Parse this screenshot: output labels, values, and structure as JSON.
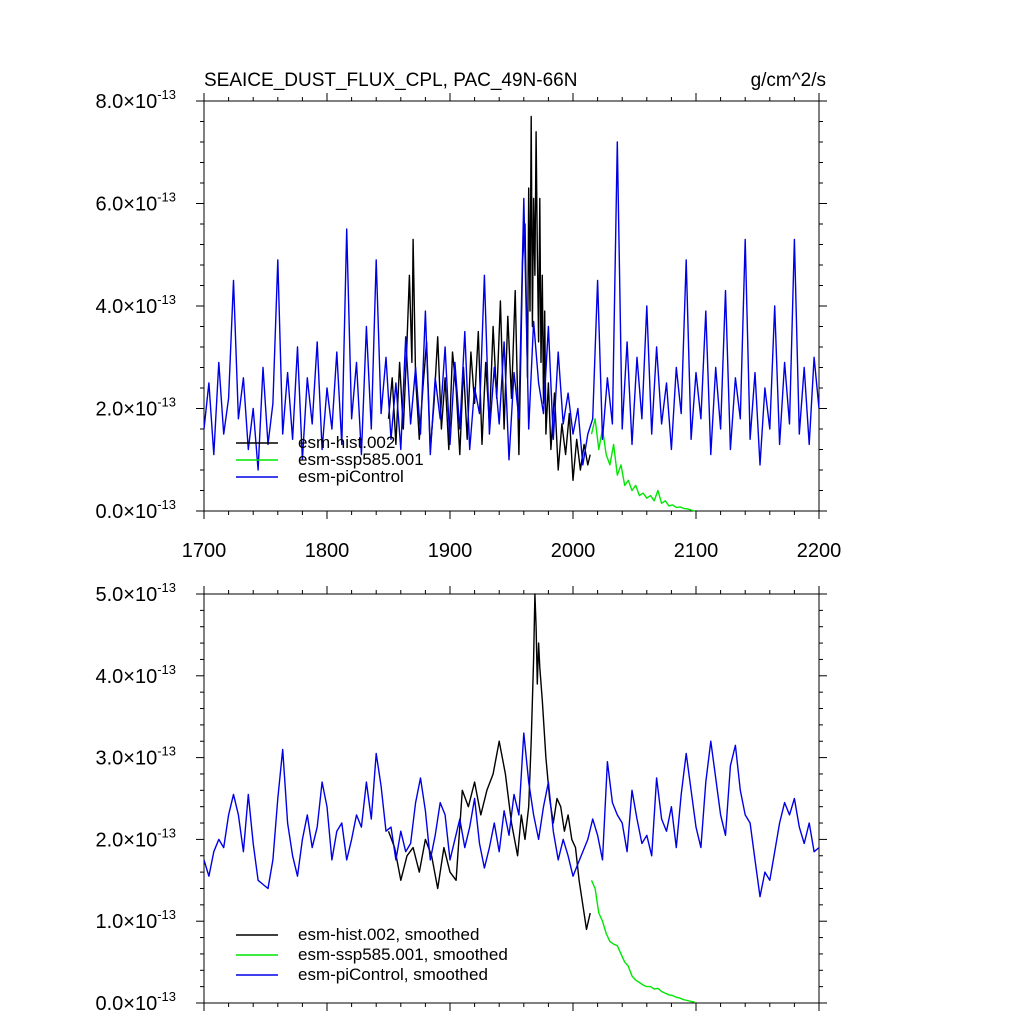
{
  "title": {
    "left": "SEAICE_DUST_FLUX_CPL, PAC_49N-66N",
    "units": "g/cm^2/s"
  },
  "colors": {
    "hist": "#000000",
    "ssp": "#00e600",
    "pi": "#0000e6"
  },
  "chart_data": [
    {
      "type": "line",
      "name": "annual",
      "xlim": [
        1700,
        2200
      ],
      "ylim": [
        0,
        8e-13
      ],
      "x_ticks": [
        1700,
        1800,
        1900,
        2000,
        2100,
        2200
      ],
      "x_tick_labels": [
        "1700",
        "1800",
        "1900",
        "2000",
        "2100",
        "2200"
      ],
      "y_ticks": [
        0,
        2e-13,
        4e-13,
        6e-13,
        8e-13
      ],
      "y_tick_labels": [
        {
          "mant": "0.0",
          "exp": "-13"
        },
        {
          "mant": "2.0",
          "exp": "-13"
        },
        {
          "mant": "4.0",
          "exp": "-13"
        },
        {
          "mant": "6.0",
          "exp": "-13"
        },
        {
          "mant": "8.0",
          "exp": "-13"
        }
      ],
      "legend": [
        "esm-hist.002",
        "esm-ssp585.001",
        "esm-piControl"
      ],
      "legend_position": "bottom-left",
      "series": [
        {
          "name": "esm-hist.002",
          "color_key": "hist",
          "x": [
            1850,
            1853,
            1856,
            1859,
            1862,
            1865,
            1867,
            1869,
            1870,
            1872,
            1875,
            1878,
            1881,
            1884,
            1887,
            1890,
            1893,
            1896,
            1899,
            1902,
            1905,
            1908,
            1911,
            1914,
            1917,
            1920,
            1923,
            1926,
            1929,
            1932,
            1935,
            1938,
            1941,
            1944,
            1947,
            1950,
            1953,
            1956,
            1959,
            1961,
            1963,
            1964,
            1965,
            1966,
            1967,
            1968,
            1969,
            1970,
            1971,
            1972,
            1973,
            1974,
            1975,
            1976,
            1977,
            1978,
            1980,
            1982,
            1985,
            1988,
            1991,
            1994,
            1997,
            2000,
            2003,
            2006,
            2009,
            2012,
            2014
          ],
          "values": [
            1.8e-13,
            2.6e-13,
            1.3e-13,
            2.9e-13,
            1.6e-13,
            3.3e-13,
            4.6e-13,
            2.9e-13,
            5.3e-13,
            2.6e-13,
            1.4e-13,
            2.4e-13,
            3.3e-13,
            1.2e-13,
            2.1e-13,
            3.4e-13,
            1.6e-13,
            2.6e-13,
            1.2e-13,
            3.1e-13,
            2.4e-13,
            1.1e-13,
            2.8e-13,
            1.4e-13,
            3.1e-13,
            2.1e-13,
            3.5e-13,
            1.3e-13,
            2.9e-13,
            1.7e-13,
            3.6e-13,
            2.2e-13,
            4.1e-13,
            1.6e-13,
            3.8e-13,
            2.2e-13,
            4.3e-13,
            1.1e-13,
            4.9e-13,
            5.6e-13,
            2.6e-13,
            6.3e-13,
            3.9e-13,
            7.7e-13,
            3.6e-13,
            6.1e-13,
            4.6e-13,
            7.4e-13,
            5.1e-13,
            3.3e-13,
            6.1e-13,
            2.9e-13,
            4.6e-13,
            2.1e-13,
            3.9e-13,
            1.5e-13,
            2.5e-13,
            1.2e-13,
            2.3e-13,
            8e-14,
            1.7e-13,
            1.1e-13,
            1.9e-13,
            6e-14,
            1.4e-13,
            8e-14,
            1.3e-13,
            9e-14,
            1.1e-13
          ]
        },
        {
          "name": "esm-ssp585.001",
          "color_key": "ssp",
          "x": [
            2015,
            2018,
            2021,
            2024,
            2027,
            2030,
            2033,
            2036,
            2039,
            2042,
            2045,
            2048,
            2051,
            2054,
            2057,
            2060,
            2063,
            2066,
            2069,
            2072,
            2075,
            2078,
            2081,
            2084,
            2087,
            2090,
            2093,
            2096,
            2099
          ],
          "values": [
            1.5e-13,
            1.8e-13,
            1.2e-13,
            1.6e-13,
            1.1e-13,
            9e-14,
            1.3e-13,
            7e-14,
            9e-14,
            5e-14,
            6e-14,
            4e-14,
            5e-14,
            3e-14,
            3.5e-14,
            2.5e-14,
            3e-14,
            2e-14,
            4e-14,
            1.5e-14,
            2e-14,
            1e-14,
            1.2e-14,
            7e-15,
            8e-15,
            5e-15,
            4e-15,
            2e-15,
            0.0
          ]
        },
        {
          "name": "esm-piControl",
          "color_key": "pi",
          "x": [
            1700,
            1704,
            1708,
            1712,
            1716,
            1720,
            1724,
            1728,
            1732,
            1736,
            1740,
            1744,
            1748,
            1752,
            1756,
            1760,
            1764,
            1768,
            1772,
            1776,
            1780,
            1784,
            1788,
            1792,
            1796,
            1800,
            1804,
            1808,
            1812,
            1816,
            1820,
            1824,
            1828,
            1832,
            1836,
            1840,
            1844,
            1848,
            1852,
            1856,
            1860,
            1864,
            1868,
            1872,
            1876,
            1880,
            1884,
            1888,
            1892,
            1896,
            1900,
            1904,
            1908,
            1912,
            1916,
            1920,
            1924,
            1928,
            1932,
            1936,
            1940,
            1944,
            1948,
            1952,
            1956,
            1960,
            1964,
            1968,
            1972,
            1976,
            1980,
            1984,
            1988,
            1992,
            1996,
            2000,
            2004,
            2008,
            2012,
            2016,
            2020,
            2024,
            2028,
            2032,
            2036,
            2040,
            2044,
            2048,
            2052,
            2056,
            2060,
            2064,
            2068,
            2072,
            2076,
            2080,
            2084,
            2088,
            2092,
            2096,
            2100,
            2104,
            2108,
            2112,
            2116,
            2120,
            2124,
            2128,
            2132,
            2136,
            2140,
            2144,
            2148,
            2152,
            2156,
            2160,
            2164,
            2168,
            2172,
            2176,
            2180,
            2184,
            2188,
            2192,
            2196,
            2200
          ],
          "values": [
            1.6e-13,
            2.5e-13,
            1.1e-13,
            2.9e-13,
            1.5e-13,
            2.2e-13,
            4.5e-13,
            1.8e-13,
            2.6e-13,
            1.2e-13,
            2e-13,
            8e-14,
            2.8e-13,
            1.3e-13,
            2.1e-13,
            4.9e-13,
            1.5e-13,
            2.7e-13,
            1.4e-13,
            3.2e-13,
            1e-13,
            2.6e-13,
            1.7e-13,
            3.3e-13,
            1.2e-13,
            2.4e-13,
            1.6e-13,
            3.1e-13,
            1.3e-13,
            5.5e-13,
            1.8e-13,
            2.9e-13,
            1.1e-13,
            3.6e-13,
            1.6e-13,
            4.9e-13,
            1.9e-13,
            3e-13,
            1.4e-13,
            2.5e-13,
            1.2e-13,
            3.4e-13,
            1.7e-13,
            2.8e-13,
            1.5e-13,
            3.9e-13,
            1.1e-13,
            2.6e-13,
            1.8e-13,
            3.2e-13,
            1.3e-13,
            2.9e-13,
            1.6e-13,
            3.5e-13,
            1.2e-13,
            2.4e-13,
            1.9e-13,
            4.6e-13,
            1.5e-13,
            2.8e-13,
            1.7e-13,
            3.3e-13,
            1e-13,
            2.7e-13,
            1.8e-13,
            6.1e-13,
            1.6e-13,
            3.7e-13,
            2.5e-13,
            1.9e-13,
            3.6e-13,
            1.4e-13,
            3.1e-13,
            1.7e-13,
            2.3e-13,
            1.5e-13,
            2e-13,
            9e-14,
            1.5e-13,
            1.8e-13,
            4.5e-13,
            1.4e-13,
            2.6e-13,
            1.7e-13,
            7.2e-13,
            1.6e-13,
            3.3e-13,
            1.3e-13,
            3e-13,
            1.8e-13,
            4e-13,
            1.5e-13,
            3.2e-13,
            1.7e-13,
            2.5e-13,
            1.2e-13,
            2.8e-13,
            1.9e-13,
            4.9e-13,
            1.4e-13,
            2.7e-13,
            1.8e-13,
            3.9e-13,
            1.1e-13,
            2.8e-13,
            1.6e-13,
            4.3e-13,
            1.2e-13,
            2.6e-13,
            1.8e-13,
            5.3e-13,
            1.4e-13,
            2.7e-13,
            9e-14,
            2.4e-13,
            1.6e-13,
            4e-13,
            1.3e-13,
            2.9e-13,
            1.7e-13,
            5.3e-13,
            1.5e-13,
            2.8e-13,
            1.3e-13,
            3e-13,
            2e-13
          ]
        }
      ]
    },
    {
      "type": "line",
      "name": "smoothed",
      "xlim": [
        1700,
        2200
      ],
      "ylim": [
        0,
        5e-13
      ],
      "x_ticks": [
        1700,
        1800,
        1900,
        2000,
        2100,
        2200
      ],
      "y_ticks": [
        0,
        1e-13,
        2e-13,
        3e-13,
        4e-13,
        5e-13
      ],
      "y_tick_labels": [
        {
          "mant": "0.0",
          "exp": "-13"
        },
        {
          "mant": "1.0",
          "exp": "-13"
        },
        {
          "mant": "2.0",
          "exp": "-13"
        },
        {
          "mant": "3.0",
          "exp": "-13"
        },
        {
          "mant": "4.0",
          "exp": "-13"
        },
        {
          "mant": "5.0",
          "exp": "-13"
        }
      ],
      "legend": [
        "esm-hist.002, smoothed",
        "esm-ssp585.001, smoothed",
        "esm-piControl, smoothed"
      ],
      "legend_position": "bottom-left",
      "series": [
        {
          "name": "esm-hist.002, smoothed",
          "color_key": "hist",
          "x": [
            1850,
            1855,
            1860,
            1865,
            1870,
            1875,
            1880,
            1885,
            1890,
            1895,
            1900,
            1905,
            1910,
            1915,
            1920,
            1925,
            1930,
            1935,
            1940,
            1945,
            1950,
            1955,
            1958,
            1961,
            1964,
            1966,
            1968,
            1969,
            1970,
            1971,
            1972,
            1973,
            1975,
            1978,
            1981,
            1984,
            1987,
            1990,
            1993,
            1996,
            1999,
            2002,
            2005,
            2008,
            2011,
            2014
          ],
          "values": [
            2.1e-13,
            1.9e-13,
            1.5e-13,
            1.8e-13,
            1.9e-13,
            1.6e-13,
            2e-13,
            1.8e-13,
            1.4e-13,
            1.9e-13,
            1.6e-13,
            1.5e-13,
            2.6e-13,
            2.4e-13,
            2.7e-13,
            2.3e-13,
            2.6e-13,
            2.8e-13,
            3.2e-13,
            2.8e-13,
            2.2e-13,
            1.8e-13,
            2.3e-13,
            2e-13,
            2.4e-13,
            3.2e-13,
            4.2e-13,
            5e-13,
            4.6e-13,
            3.9e-13,
            4.4e-13,
            4.1e-13,
            3.7e-13,
            3e-13,
            2.5e-13,
            2.2e-13,
            2.5e-13,
            2.4e-13,
            2.1e-13,
            2.3e-13,
            2e-13,
            1.9e-13,
            1.5e-13,
            1.2e-13,
            9e-14,
            1.1e-13
          ]
        },
        {
          "name": "esm-ssp585.001, smoothed",
          "color_key": "ssp",
          "x": [
            2015,
            2018,
            2021,
            2024,
            2027,
            2030,
            2033,
            2036,
            2039,
            2042,
            2045,
            2048,
            2051,
            2054,
            2057,
            2060,
            2063,
            2066,
            2069,
            2072,
            2075,
            2078,
            2081,
            2084,
            2087,
            2090,
            2093,
            2096,
            2099
          ],
          "values": [
            1.5e-13,
            1.4e-13,
            1.1e-13,
            1e-13,
            8.5e-14,
            7.5e-14,
            7.2e-14,
            7e-14,
            6e-14,
            5e-14,
            4.5e-14,
            3.3e-14,
            2.8e-14,
            2.5e-14,
            2.2e-14,
            2e-14,
            2e-14,
            1.7e-14,
            1.8e-14,
            1.4e-14,
            1.2e-14,
            1e-14,
            9e-15,
            7e-15,
            6e-15,
            4e-15,
            3e-15,
            2e-15,
            1e-15
          ]
        },
        {
          "name": "esm-piControl, smoothed",
          "color_key": "pi",
          "x": [
            1700,
            1704,
            1708,
            1712,
            1716,
            1720,
            1724,
            1728,
            1732,
            1736,
            1740,
            1744,
            1748,
            1752,
            1756,
            1760,
            1764,
            1768,
            1772,
            1776,
            1780,
            1784,
            1788,
            1792,
            1796,
            1800,
            1804,
            1808,
            1812,
            1816,
            1820,
            1824,
            1828,
            1832,
            1836,
            1840,
            1844,
            1848,
            1852,
            1856,
            1860,
            1864,
            1868,
            1872,
            1876,
            1880,
            1884,
            1888,
            1892,
            1896,
            1900,
            1904,
            1908,
            1912,
            1916,
            1920,
            1924,
            1928,
            1932,
            1936,
            1940,
            1944,
            1948,
            1952,
            1956,
            1960,
            1964,
            1968,
            1972,
            1976,
            1980,
            1984,
            1988,
            1992,
            1996,
            2000,
            2004,
            2008,
            2012,
            2016,
            2020,
            2024,
            2028,
            2032,
            2036,
            2040,
            2044,
            2048,
            2052,
            2056,
            2060,
            2064,
            2068,
            2072,
            2076,
            2080,
            2084,
            2088,
            2092,
            2096,
            2100,
            2104,
            2108,
            2112,
            2116,
            2120,
            2124,
            2128,
            2132,
            2136,
            2140,
            2144,
            2148,
            2152,
            2156,
            2160,
            2164,
            2168,
            2172,
            2176,
            2180,
            2184,
            2188,
            2192,
            2196,
            2200
          ],
          "values": [
            1.75e-13,
            1.55e-13,
            1.85e-13,
            2e-13,
            1.9e-13,
            2.3e-13,
            2.55e-13,
            2.3e-13,
            1.85e-13,
            2.55e-13,
            1.95e-13,
            1.5e-13,
            1.45e-13,
            1.4e-13,
            1.75e-13,
            2.5e-13,
            3.1e-13,
            2.2e-13,
            1.8e-13,
            1.55e-13,
            2e-13,
            2.3e-13,
            1.9e-13,
            2.15e-13,
            2.7e-13,
            2.4e-13,
            1.75e-13,
            2.1e-13,
            2.2e-13,
            1.75e-13,
            2e-13,
            2.3e-13,
            2.15e-13,
            2.7e-13,
            2.25e-13,
            3.05e-13,
            2.65e-13,
            2.1e-13,
            2.15e-13,
            1.75e-13,
            2.1e-13,
            1.85e-13,
            1.95e-13,
            2.45e-13,
            2.75e-13,
            2.35e-13,
            1.75e-13,
            2.05e-13,
            2.45e-13,
            2.3e-13,
            1.75e-13,
            2e-13,
            2.25e-13,
            1.9e-13,
            2.15e-13,
            2.5e-13,
            1.95e-13,
            1.65e-13,
            1.9e-13,
            2.2e-13,
            1.85e-13,
            2.35e-13,
            2.05e-13,
            2.55e-13,
            2.3e-13,
            3.3e-13,
            2.7e-13,
            2.3e-13,
            2e-13,
            2.4e-13,
            2.7e-13,
            2.1e-13,
            1.75e-13,
            2e-13,
            1.8e-13,
            1.55e-13,
            1.7e-13,
            1.85e-13,
            2e-13,
            2.25e-13,
            2.05e-13,
            1.75e-13,
            2.95e-13,
            2.45e-13,
            2.3e-13,
            2.2e-13,
            1.85e-13,
            2.6e-13,
            2.25e-13,
            1.95e-13,
            2.05e-13,
            1.8e-13,
            2.75e-13,
            2.25e-13,
            2.1e-13,
            2.4e-13,
            1.9e-13,
            2.55e-13,
            3.05e-13,
            2.6e-13,
            2.15e-13,
            1.9e-13,
            2.7e-13,
            3.2e-13,
            2.75e-13,
            2.3e-13,
            2.05e-13,
            2.9e-13,
            3.15e-13,
            2.6e-13,
            2.3e-13,
            2.2e-13,
            1.75e-13,
            1.3e-13,
            1.6e-13,
            1.5e-13,
            1.85e-13,
            2.2e-13,
            2.45e-13,
            2.3e-13,
            2.5e-13,
            2.15e-13,
            1.95e-13,
            2.2e-13,
            1.85e-13,
            1.9e-13
          ]
        }
      ]
    }
  ]
}
